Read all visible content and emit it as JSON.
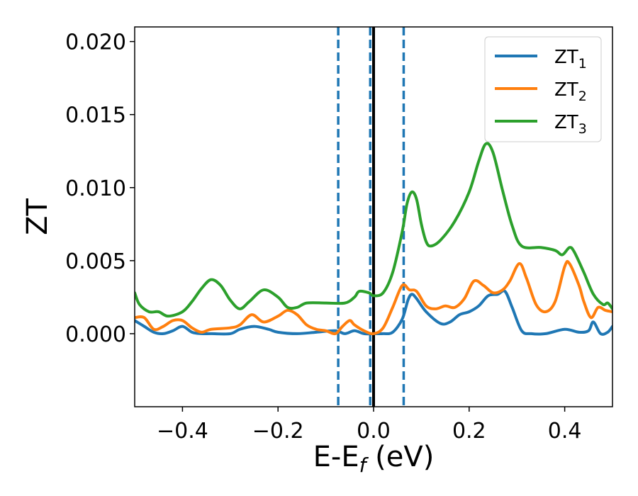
{
  "chart_data": {
    "type": "line",
    "xlabel": "E-E",
    "xlabel_sub": "f",
    "xlabel_unit": " (eV)",
    "ylabel": "ZT",
    "xlim": [
      -0.5,
      0.5
    ],
    "ylim": [
      -0.005,
      0.021
    ],
    "x_ticks": [
      -0.4,
      -0.2,
      0.0,
      0.2,
      0.4
    ],
    "x_tick_labels": [
      "−0.4",
      "−0.2",
      "0.0",
      "0.2",
      "0.4"
    ],
    "y_ticks": [
      0.0,
      0.005,
      0.01,
      0.015,
      0.02
    ],
    "y_tick_labels": [
      "0.000",
      "0.005",
      "0.010",
      "0.015",
      "0.020"
    ],
    "grid": false,
    "legend_position": "top-right",
    "vertical_lines": [
      {
        "x": -0.074,
        "style": "dashed",
        "color": "#1f77b4"
      },
      {
        "x": -0.007,
        "style": "dashed",
        "color": "#1f77b4"
      },
      {
        "x": 0.063,
        "style": "dashed",
        "color": "#1f77b4"
      },
      {
        "x": 0.0,
        "style": "solid",
        "color": "#000000"
      }
    ],
    "series": [
      {
        "name": "ZT",
        "name_sub": "1",
        "color": "#1f77b4",
        "points": [
          [
            -0.5,
            0.0009
          ],
          [
            -0.48,
            0.0005
          ],
          [
            -0.46,
            0.0001
          ],
          [
            -0.44,
            0.0
          ],
          [
            -0.42,
            0.0002
          ],
          [
            -0.4,
            0.0005
          ],
          [
            -0.38,
            0.0001
          ],
          [
            -0.36,
            0.0
          ],
          [
            -0.34,
            0.0
          ],
          [
            -0.3,
            0.0
          ],
          [
            -0.28,
            0.0003
          ],
          [
            -0.25,
            0.0005
          ],
          [
            -0.22,
            0.0003
          ],
          [
            -0.2,
            0.0001
          ],
          [
            -0.16,
            0.0
          ],
          [
            -0.12,
            0.0001
          ],
          [
            -0.08,
            0.0002
          ],
          [
            -0.06,
            0.0
          ],
          [
            -0.04,
            0.0002
          ],
          [
            -0.02,
            0.0
          ],
          [
            0.0,
            0.0
          ],
          [
            0.02,
            0.0
          ],
          [
            0.04,
            0.0001
          ],
          [
            0.06,
            0.001
          ],
          [
            0.072,
            0.0023
          ],
          [
            0.08,
            0.0027
          ],
          [
            0.09,
            0.0024
          ],
          [
            0.11,
            0.0015
          ],
          [
            0.14,
            0.0007
          ],
          [
            0.16,
            0.0008
          ],
          [
            0.18,
            0.0013
          ],
          [
            0.2,
            0.0015
          ],
          [
            0.22,
            0.0019
          ],
          [
            0.24,
            0.0026
          ],
          [
            0.26,
            0.0027
          ],
          [
            0.275,
            0.0029
          ],
          [
            0.29,
            0.0018
          ],
          [
            0.31,
            0.0002
          ],
          [
            0.33,
            0.0
          ],
          [
            0.36,
            0.0
          ],
          [
            0.4,
            0.0003
          ],
          [
            0.43,
            0.0001
          ],
          [
            0.45,
            0.0002
          ],
          [
            0.46,
            0.0008
          ],
          [
            0.475,
            0.0
          ],
          [
            0.49,
            0.0001
          ],
          [
            0.5,
            0.0005
          ]
        ]
      },
      {
        "name": "ZT",
        "name_sub": "2",
        "color": "#ff7f0e",
        "points": [
          [
            -0.5,
            0.0011
          ],
          [
            -0.48,
            0.0011
          ],
          [
            -0.46,
            0.0003
          ],
          [
            -0.44,
            0.0005
          ],
          [
            -0.42,
            0.0009
          ],
          [
            -0.4,
            0.0009
          ],
          [
            -0.38,
            0.0004
          ],
          [
            -0.36,
            0.0001
          ],
          [
            -0.34,
            0.0003
          ],
          [
            -0.3,
            0.0004
          ],
          [
            -0.28,
            0.0006
          ],
          [
            -0.255,
            0.0013
          ],
          [
            -0.23,
            0.0008
          ],
          [
            -0.2,
            0.0012
          ],
          [
            -0.18,
            0.0016
          ],
          [
            -0.16,
            0.0013
          ],
          [
            -0.14,
            0.0006
          ],
          [
            -0.12,
            0.0003
          ],
          [
            -0.1,
            0.0002
          ],
          [
            -0.08,
            0.0
          ],
          [
            -0.065,
            0.0005
          ],
          [
            -0.05,
            0.0009
          ],
          [
            -0.04,
            0.0006
          ],
          [
            -0.02,
            0.0002
          ],
          [
            0.0,
            0.0
          ],
          [
            0.02,
            0.0004
          ],
          [
            0.04,
            0.0018
          ],
          [
            0.06,
            0.0033
          ],
          [
            0.075,
            0.003
          ],
          [
            0.09,
            0.0029
          ],
          [
            0.11,
            0.0019
          ],
          [
            0.13,
            0.0017
          ],
          [
            0.15,
            0.0019
          ],
          [
            0.17,
            0.0018
          ],
          [
            0.19,
            0.0024
          ],
          [
            0.21,
            0.0036
          ],
          [
            0.23,
            0.0033
          ],
          [
            0.25,
            0.0028
          ],
          [
            0.27,
            0.003
          ],
          [
            0.285,
            0.0036
          ],
          [
            0.305,
            0.0048
          ],
          [
            0.32,
            0.0038
          ],
          [
            0.34,
            0.002
          ],
          [
            0.36,
            0.0015
          ],
          [
            0.38,
            0.0022
          ],
          [
            0.4,
            0.0046
          ],
          [
            0.41,
            0.0048
          ],
          [
            0.43,
            0.0033
          ],
          [
            0.44,
            0.0022
          ],
          [
            0.455,
            0.0011
          ],
          [
            0.47,
            0.0018
          ],
          [
            0.485,
            0.0016
          ],
          [
            0.5,
            0.0015
          ]
        ]
      },
      {
        "name": "ZT",
        "name_sub": "3",
        "color": "#2ca02c",
        "points": [
          [
            -0.5,
            0.0028
          ],
          [
            -0.49,
            0.002
          ],
          [
            -0.47,
            0.0015
          ],
          [
            -0.45,
            0.0015
          ],
          [
            -0.43,
            0.0012
          ],
          [
            -0.4,
            0.0015
          ],
          [
            -0.38,
            0.0022
          ],
          [
            -0.36,
            0.0031
          ],
          [
            -0.34,
            0.0037
          ],
          [
            -0.32,
            0.0033
          ],
          [
            -0.3,
            0.0023
          ],
          [
            -0.28,
            0.0017
          ],
          [
            -0.26,
            0.0022
          ],
          [
            -0.23,
            0.003
          ],
          [
            -0.2,
            0.0025
          ],
          [
            -0.18,
            0.0018
          ],
          [
            -0.16,
            0.0018
          ],
          [
            -0.14,
            0.0021
          ],
          [
            -0.1,
            0.0021
          ],
          [
            -0.06,
            0.0021
          ],
          [
            -0.04,
            0.0025
          ],
          [
            -0.03,
            0.0029
          ],
          [
            -0.01,
            0.0028
          ],
          [
            0.0,
            0.0026
          ],
          [
            0.02,
            0.0028
          ],
          [
            0.04,
            0.0042
          ],
          [
            0.06,
            0.007
          ],
          [
            0.07,
            0.0089
          ],
          [
            0.08,
            0.0097
          ],
          [
            0.09,
            0.0092
          ],
          [
            0.1,
            0.0075
          ],
          [
            0.11,
            0.0063
          ],
          [
            0.12,
            0.006
          ],
          [
            0.14,
            0.0064
          ],
          [
            0.17,
            0.0077
          ],
          [
            0.2,
            0.0097
          ],
          [
            0.22,
            0.0118
          ],
          [
            0.235,
            0.013
          ],
          [
            0.25,
            0.0124
          ],
          [
            0.27,
            0.0098
          ],
          [
            0.29,
            0.0074
          ],
          [
            0.31,
            0.006
          ],
          [
            0.35,
            0.0059
          ],
          [
            0.38,
            0.0057
          ],
          [
            0.395,
            0.0054
          ],
          [
            0.41,
            0.0059
          ],
          [
            0.42,
            0.0056
          ],
          [
            0.44,
            0.0042
          ],
          [
            0.46,
            0.0027
          ],
          [
            0.48,
            0.002
          ],
          [
            0.49,
            0.0021
          ],
          [
            0.5,
            0.0017
          ]
        ]
      }
    ]
  }
}
